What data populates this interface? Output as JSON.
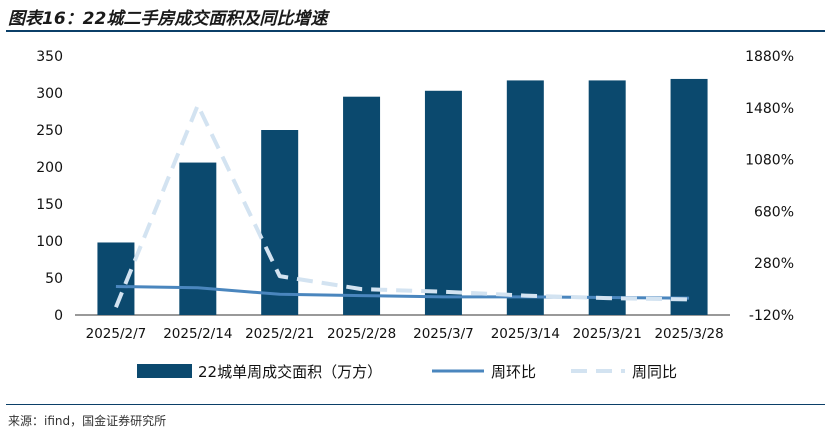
{
  "title": "图表16：22城二手房成交面积及同比增速",
  "source": "来源：ifind，国金证券研究所",
  "colors": {
    "bar": "#0b496e",
    "mom_line": "#4a86be",
    "yoy_line": "#d3e3f1",
    "rule": "#0b3f68"
  },
  "chart_data": {
    "type": "bar",
    "categories": [
      "2025/2/7",
      "2025/2/14",
      "2025/2/21",
      "2025/2/28",
      "2025/3/7",
      "2025/3/14",
      "2025/3/21",
      "2025/3/28"
    ],
    "series": [
      {
        "name": "22城单周成交面积（万方）",
        "type": "bar",
        "axis": "left",
        "values": [
          98,
          206,
          250,
          295,
          303,
          317,
          317,
          319
        ]
      },
      {
        "name": "周环比",
        "type": "line",
        "axis": "right",
        "style": "solid",
        "values": [
          100,
          90,
          40,
          30,
          20,
          20,
          15,
          10
        ]
      },
      {
        "name": "周同比",
        "type": "line",
        "axis": "right",
        "style": "dashed",
        "values": [
          -60,
          1500,
          180,
          80,
          60,
          30,
          10,
          0
        ]
      }
    ],
    "y_left": {
      "ylim": [
        0,
        350
      ],
      "ticks": [
        "0",
        "50",
        "100",
        "150",
        "200",
        "250",
        "300",
        "350"
      ]
    },
    "y_right": {
      "ylim": [
        -120,
        1880
      ],
      "ticks": [
        "-120%",
        "280%",
        "680%",
        "1080%",
        "1480%",
        "1880%"
      ]
    },
    "legend": {
      "placement": "bottom",
      "items": [
        "22城单周成交面积（万方）",
        "周环比",
        "周同比"
      ]
    },
    "grid": false
  }
}
